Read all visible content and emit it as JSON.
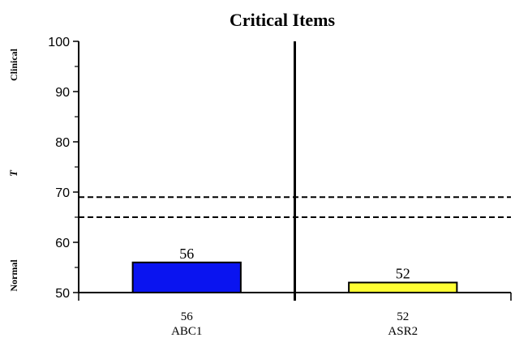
{
  "chart_data": {
    "type": "bar",
    "title": "Critical Items",
    "categories": [
      "ABC1",
      "ASR2"
    ],
    "values": [
      56,
      52
    ],
    "bar_colors": [
      "#0a14f0",
      "#ffff33"
    ],
    "x_value_labels": [
      "56",
      "52"
    ],
    "ylim": [
      50,
      100
    ],
    "yticks": [
      "50",
      "60",
      "70",
      "80",
      "90",
      "100"
    ],
    "reference_lines": [
      65,
      69
    ],
    "y_side_labels": {
      "top": "Clinical",
      "middle": "T",
      "bottom": "Normal"
    },
    "grid": false
  }
}
